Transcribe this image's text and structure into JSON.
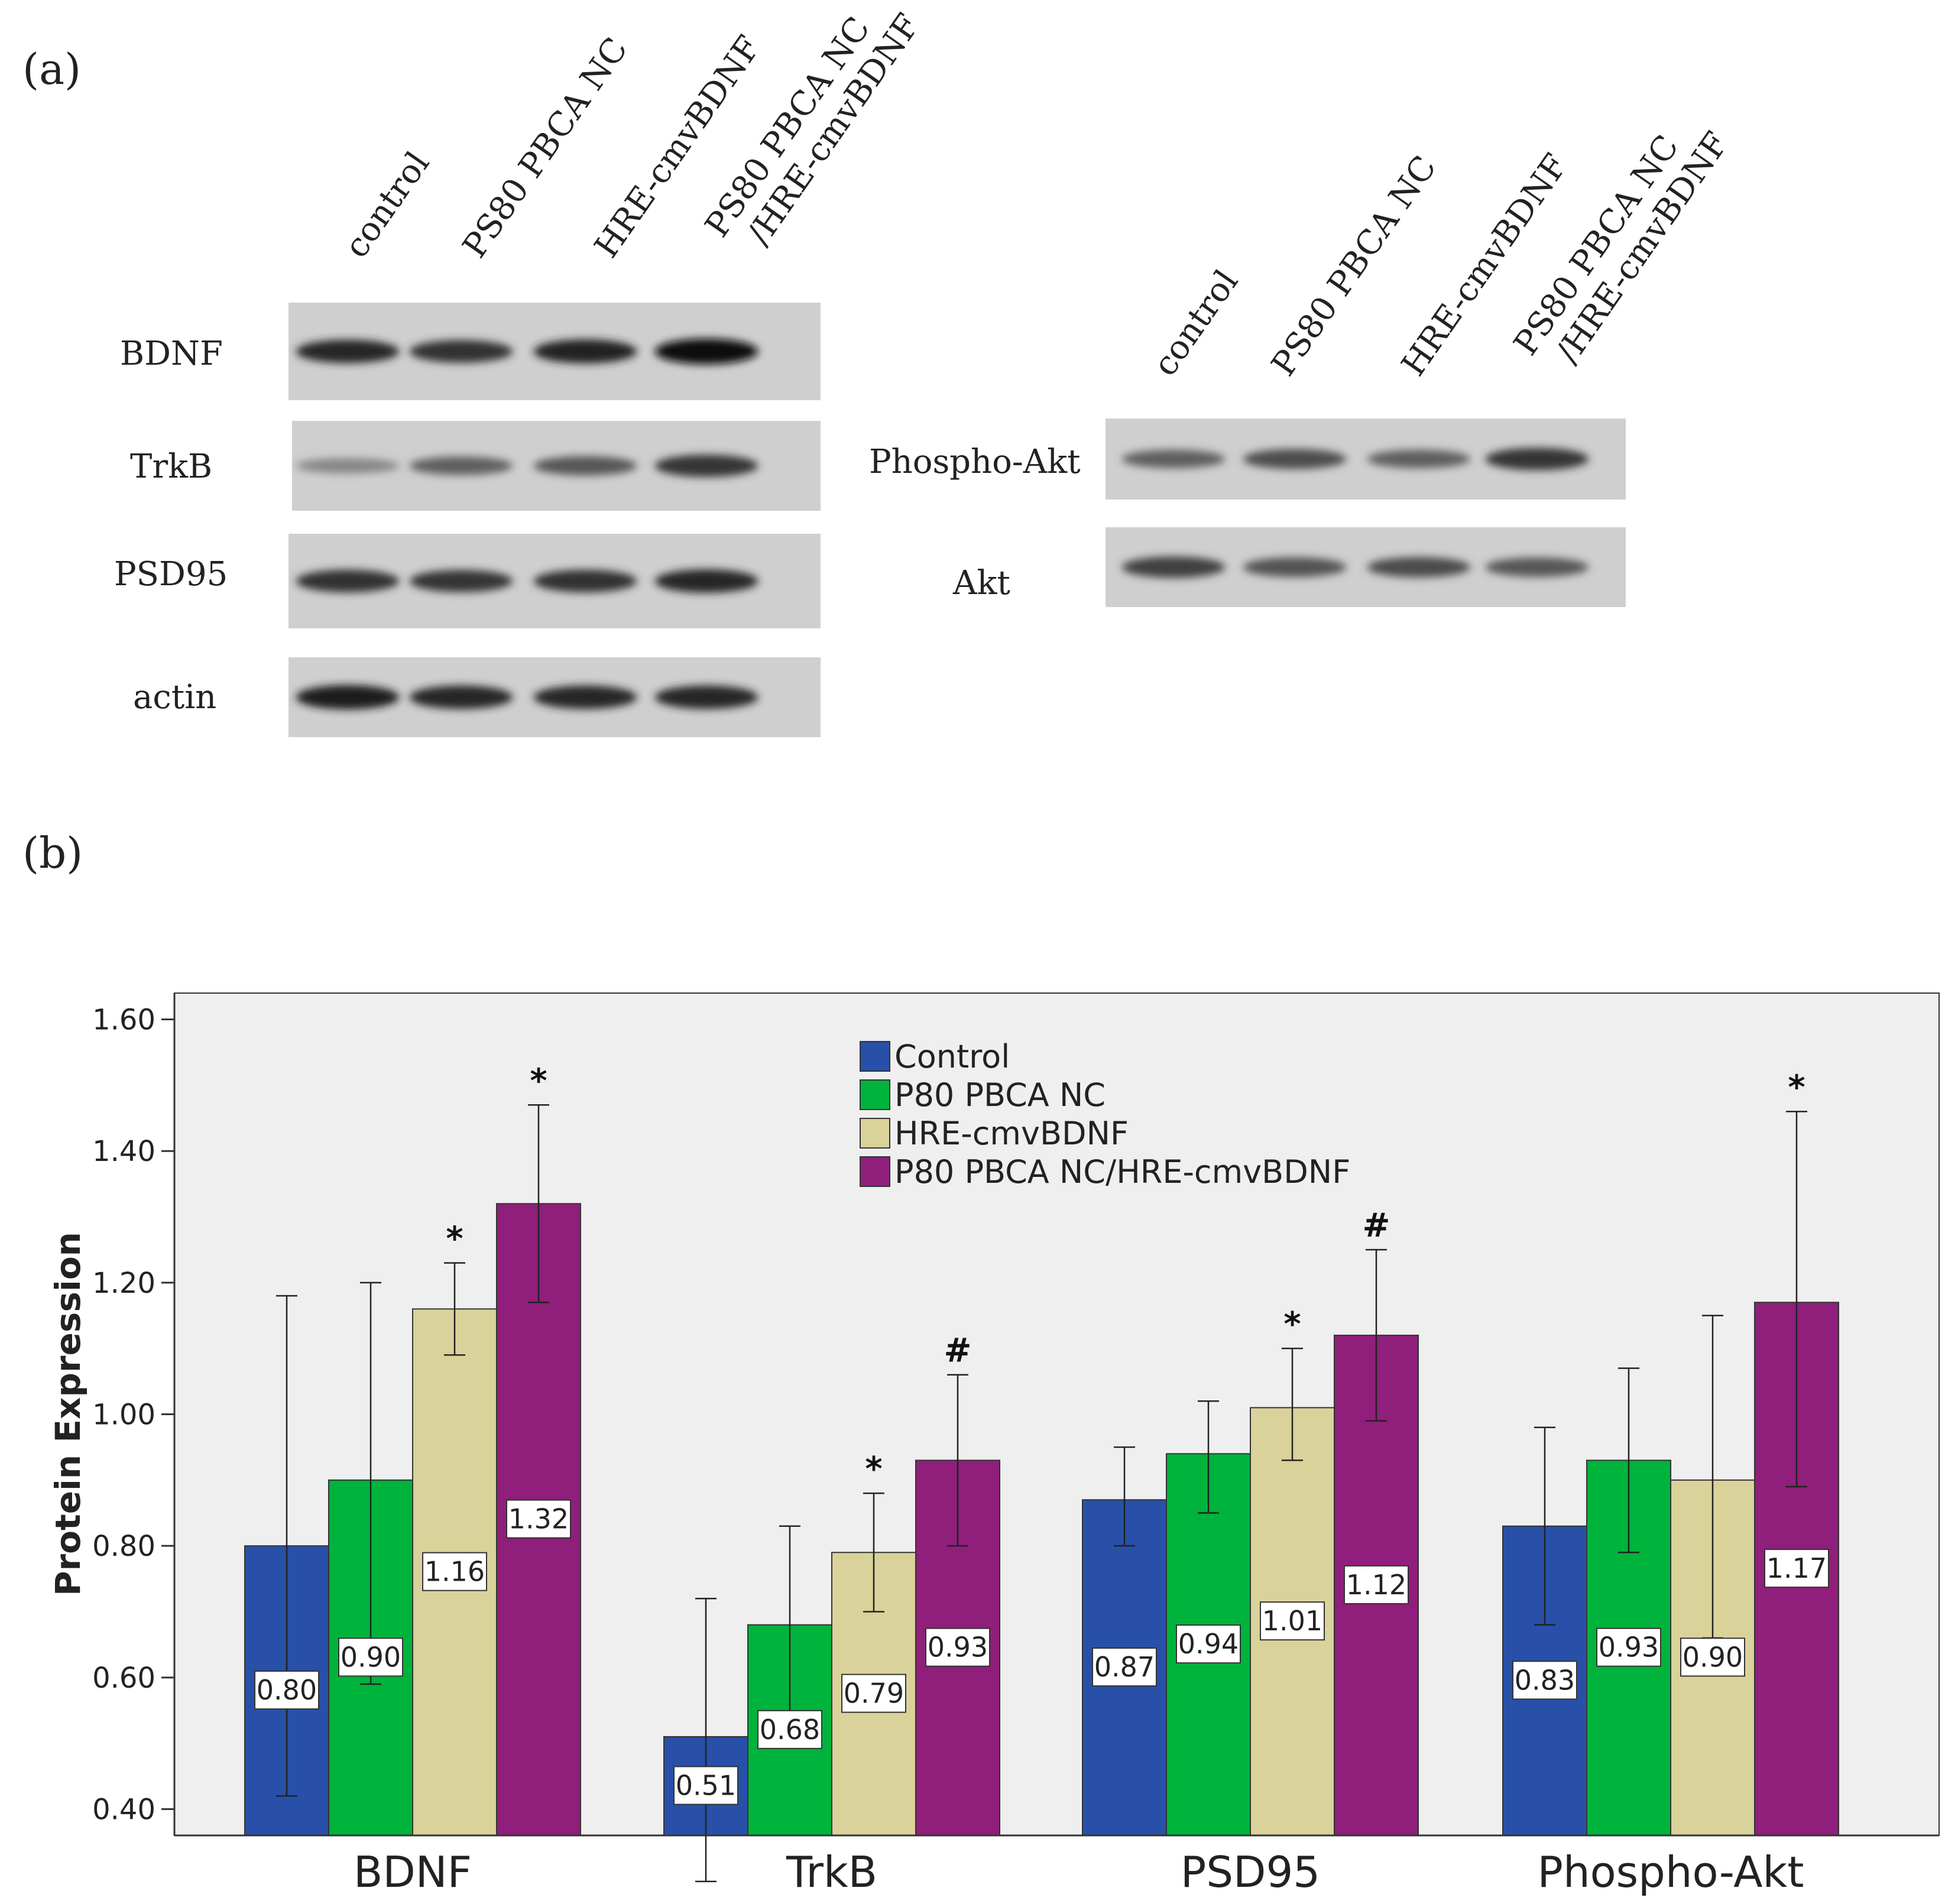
{
  "panel_a": {
    "label": "(a)",
    "left_blot": {
      "lanes": [
        "control",
        "PS80 PBCA NC",
        "HRE-cmvBDNF",
        "PS80 PBCA NC\n/HRE-cmvBDNF"
      ],
      "rows": [
        {
          "name": "BDNF",
          "intensity": [
            0.85,
            0.8,
            0.88,
            0.98
          ]
        },
        {
          "name": "TrkB",
          "intensity": [
            0.35,
            0.55,
            0.6,
            0.78
          ]
        },
        {
          "name": "PSD95",
          "intensity": [
            0.8,
            0.78,
            0.8,
            0.85
          ]
        },
        {
          "name": "actin",
          "intensity": [
            0.9,
            0.85,
            0.85,
            0.85
          ]
        }
      ]
    },
    "right_blot": {
      "lanes": [
        "control",
        "PS80 PBCA NC",
        "HRE-cmvBDNF",
        "PS80 PBCA NC\n/HRE-cmvBDNF"
      ],
      "rows": [
        {
          "name": "Phospho-Akt",
          "intensity": [
            0.55,
            0.65,
            0.55,
            0.78
          ]
        },
        {
          "name": "Akt",
          "intensity": [
            0.72,
            0.62,
            0.66,
            0.6
          ]
        }
      ]
    }
  },
  "panel_b": {
    "label": "(b)"
  },
  "colors": {
    "control": "#2850a8",
    "p80": "#00b33c",
    "hre": "#d9d29a",
    "combo": "#8f1f7a",
    "plot_bg": "#efefef"
  },
  "chart_data": {
    "type": "bar",
    "title": "",
    "xlabel": "",
    "ylabel": "Protein Expression",
    "ylim": [
      0.36,
      1.64
    ],
    "yticks": [
      "0.40",
      "0.60",
      "0.80",
      "1.00",
      "1.20",
      "1.40",
      "1.60"
    ],
    "categories": [
      "BDNF",
      "TrkB",
      "PSD95",
      "Phospho-Akt"
    ],
    "legend_position": "top-center",
    "series": [
      {
        "name": "Control",
        "color_key": "control",
        "values": [
          0.8,
          0.51,
          0.87,
          0.83
        ],
        "labels": [
          "0.80",
          "0.51",
          "0.87",
          "0.83"
        ],
        "err_low": [
          0.42,
          0.29,
          0.8,
          0.68
        ],
        "err_high": [
          1.18,
          0.72,
          0.95,
          0.98
        ],
        "marks": [
          "",
          "",
          "",
          ""
        ]
      },
      {
        "name": "P80 PBCA NC",
        "color_key": "p80",
        "values": [
          0.9,
          0.68,
          0.94,
          0.93
        ],
        "labels": [
          "0.90",
          "0.68",
          "0.94",
          "0.93"
        ],
        "err_low": [
          0.59,
          0.53,
          0.85,
          0.79
        ],
        "err_high": [
          1.2,
          0.83,
          1.02,
          1.07
        ],
        "marks": [
          "",
          "",
          "",
          ""
        ]
      },
      {
        "name": "HRE-cmvBDNF",
        "color_key": "hre",
        "values": [
          1.16,
          0.79,
          1.01,
          0.9
        ],
        "labels": [
          "1.16",
          "0.79",
          "1.01",
          "0.90"
        ],
        "err_low": [
          1.09,
          0.7,
          0.93,
          0.66
        ],
        "err_high": [
          1.23,
          0.88,
          1.1,
          1.15
        ],
        "marks": [
          "*",
          "*",
          "*",
          ""
        ]
      },
      {
        "name": "P80 PBCA NC/HRE-cmvBDNF",
        "color_key": "combo",
        "values": [
          1.32,
          0.93,
          1.12,
          1.17
        ],
        "labels": [
          "1.32",
          "0.93",
          "1.12",
          "1.17"
        ],
        "err_low": [
          1.17,
          0.8,
          0.99,
          0.89
        ],
        "err_high": [
          1.47,
          1.06,
          1.25,
          1.46
        ],
        "marks": [
          "*",
          "#",
          "#",
          "*"
        ]
      }
    ]
  }
}
